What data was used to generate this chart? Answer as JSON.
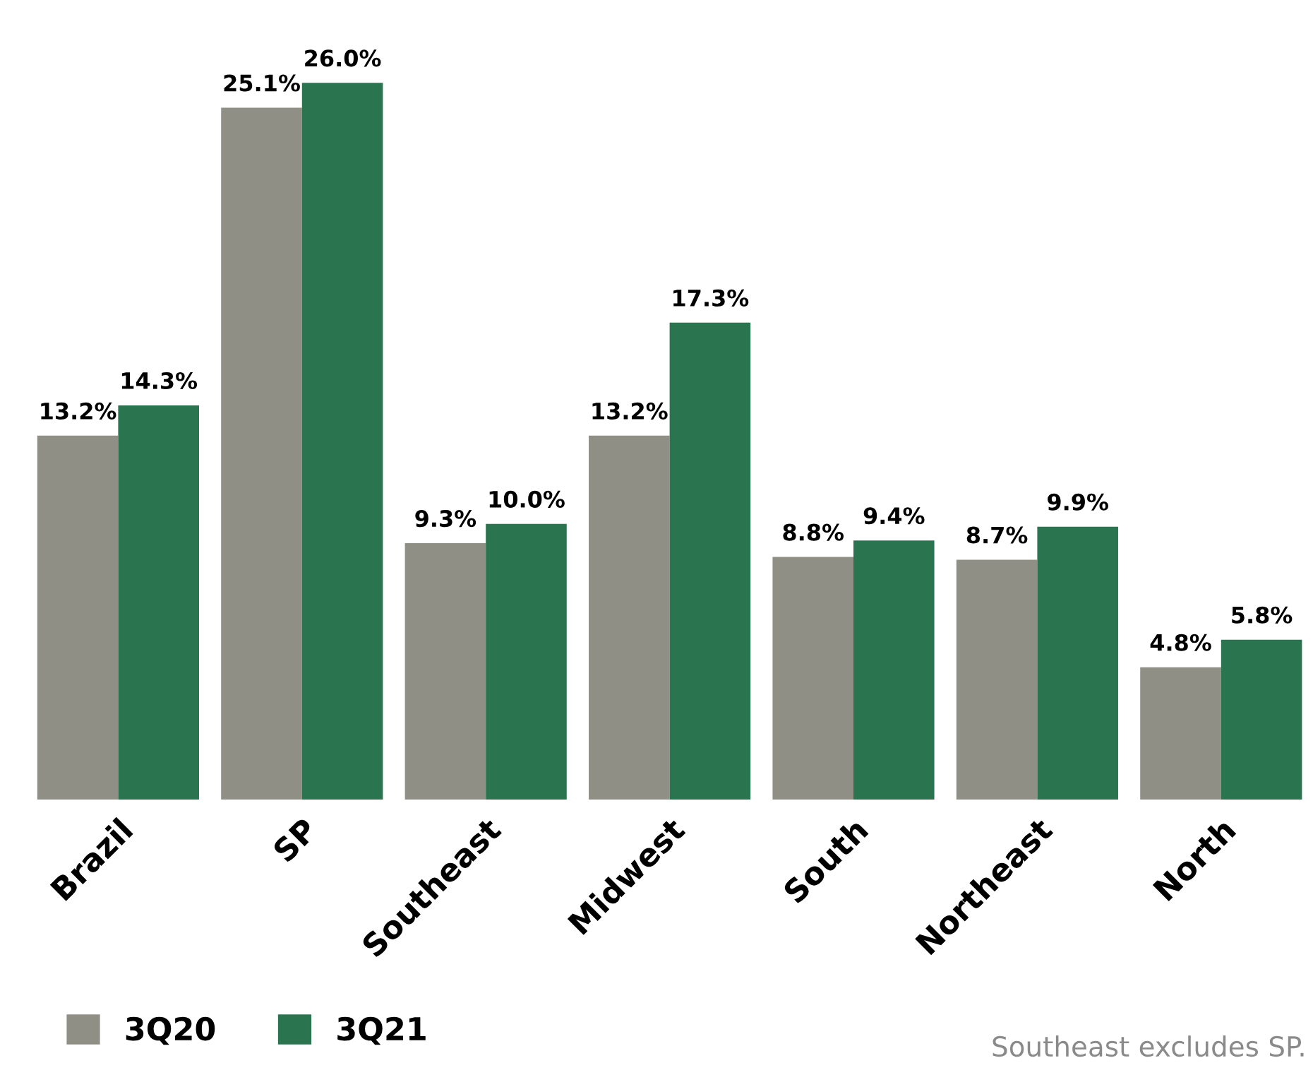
{
  "chart_data": {
    "type": "bar",
    "categories": [
      "Brazil",
      "SP",
      "Southeast",
      "Midwest",
      "South",
      "Northeast",
      "North"
    ],
    "series": [
      {
        "name": "3Q20",
        "color": "#908f86",
        "values": [
          13.2,
          25.1,
          9.3,
          13.2,
          8.8,
          8.7,
          4.8
        ],
        "value_labels": [
          "13.2%",
          "25.1%",
          "9.3%",
          "13.2%",
          "8.8%",
          "8.7%",
          "4.8%"
        ]
      },
      {
        "name": "3Q21",
        "color": "#2a7550",
        "values": [
          14.3,
          26.0,
          10.0,
          17.3,
          9.4,
          9.9,
          5.8
        ],
        "value_labels": [
          "14.3%",
          "26.0%",
          "10.0%",
          "17.3%",
          "9.4%",
          "9.9%",
          "5.8%"
        ]
      }
    ],
    "legend": "bottom left",
    "grid": false,
    "tick_labels": "x",
    "annotations": [
      "Southeast excludes SP."
    ]
  }
}
